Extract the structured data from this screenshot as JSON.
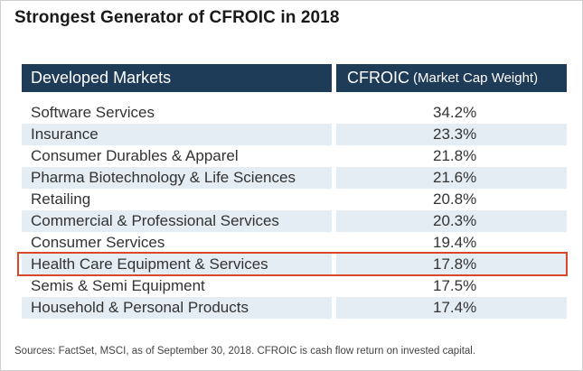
{
  "title": "Strongest Generator of CFROIC in 2018",
  "table": {
    "header_left": "Developed Markets",
    "header_right_main": "CFROIC",
    "header_right_sub": "(Market Cap Weight)"
  },
  "chart_data": {
    "type": "table",
    "title": "Strongest Generator of CFROIC in 2018",
    "columns": [
      "Developed Markets",
      "CFROIC (Market Cap Weight)"
    ],
    "rows": [
      {
        "name": "Software Services",
        "value": "34.2%"
      },
      {
        "name": "Insurance",
        "value": "23.3%"
      },
      {
        "name": "Consumer Durables & Apparel",
        "value": "21.8%"
      },
      {
        "name": "Pharma Biotechnology & Life Sciences",
        "value": "21.6%"
      },
      {
        "name": "Retailing",
        "value": "20.8%"
      },
      {
        "name": "Commercial & Professional Services",
        "value": "20.3%"
      },
      {
        "name": "Consumer Services",
        "value": "19.4%"
      },
      {
        "name": "Health Care Equipment & Services",
        "value": "17.8%"
      },
      {
        "name": "Semis & Semi Equipment",
        "value": "17.5%"
      },
      {
        "name": "Household & Personal Products",
        "value": "17.4%"
      }
    ],
    "highlighted_row": "Health Care Equipment & Services"
  },
  "colors": {
    "header_bg": "#1e3b57",
    "row_shade": "#e4edf4",
    "highlight": "#d9482b"
  },
  "footer": "Sources: FactSet, MSCI, as of September 30, 2018. CFROIC is cash flow return on invested capital."
}
